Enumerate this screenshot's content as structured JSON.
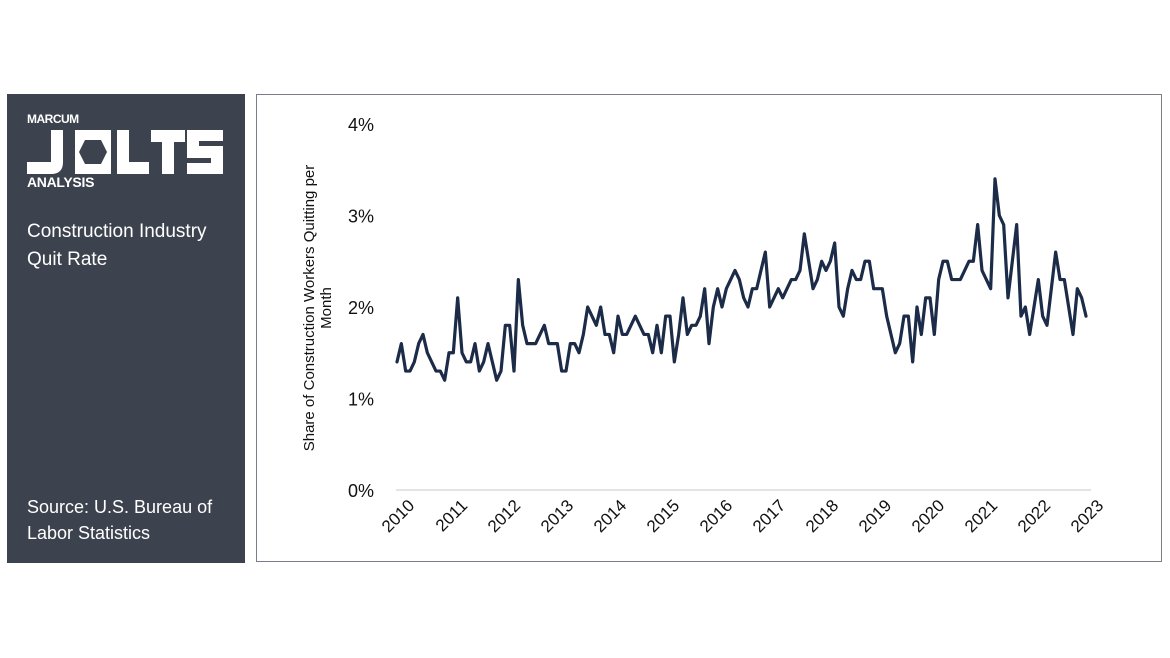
{
  "brand": {
    "small": "MARCUM",
    "big": "JOLTS",
    "sub": "ANALYSIS"
  },
  "panel": {
    "title": "Construction Industry Quit Rate",
    "source": "Source: U.S. Bureau of Labor Statistics"
  },
  "colors": {
    "panel_bg": "#3d434e",
    "line": "#1b2b48",
    "axis": "#c8c8c8"
  },
  "chart_data": {
    "type": "line",
    "title": "",
    "ylabel": "Share of Construction Workers Quitting per Month",
    "xlabel": "",
    "ylim": [
      0,
      4
    ],
    "y_ticks": [
      {
        "value": 0,
        "label": "0%"
      },
      {
        "value": 1,
        "label": "1%"
      },
      {
        "value": 2,
        "label": "2%"
      },
      {
        "value": 3,
        "label": "3%"
      },
      {
        "value": 4,
        "label": "4%"
      }
    ],
    "x_ticks": [
      "2010",
      "2011",
      "2012",
      "2013",
      "2014",
      "2015",
      "2016",
      "2017",
      "2018",
      "2019",
      "2020",
      "2021",
      "2022",
      "2023"
    ],
    "x_start_year": 2010,
    "grid": false,
    "series": [
      {
        "values": [
          1.4,
          1.6,
          1.3,
          1.3,
          1.4,
          1.6,
          1.7,
          1.5,
          1.4,
          1.3,
          1.3,
          1.2,
          1.5,
          1.5,
          2.1,
          1.5,
          1.4,
          1.4,
          1.6,
          1.3,
          1.4,
          1.6,
          1.4,
          1.2,
          1.3,
          1.8,
          1.8,
          1.3,
          2.3,
          1.8,
          1.6,
          1.6,
          1.6,
          1.7,
          1.8,
          1.6,
          1.6,
          1.6,
          1.3,
          1.3,
          1.6,
          1.6,
          1.5,
          1.7,
          2.0,
          1.9,
          1.8,
          2.0,
          1.7,
          1.7,
          1.5,
          1.9,
          1.7,
          1.7,
          1.8,
          1.9,
          1.8,
          1.7,
          1.7,
          1.5,
          1.8,
          1.5,
          1.9,
          1.9,
          1.4,
          1.7,
          2.1,
          1.7,
          1.8,
          1.8,
          1.9,
          2.2,
          1.6,
          2.0,
          2.2,
          2.0,
          2.2,
          2.3,
          2.4,
          2.3,
          2.1,
          2.0,
          2.2,
          2.2,
          2.4,
          2.6,
          2.0,
          2.1,
          2.2,
          2.1,
          2.2,
          2.3,
          2.3,
          2.4,
          2.8,
          2.5,
          2.2,
          2.3,
          2.5,
          2.4,
          2.5,
          2.7,
          2.0,
          1.9,
          2.2,
          2.4,
          2.3,
          2.3,
          2.5,
          2.5,
          2.2,
          2.2,
          2.2,
          1.9,
          1.7,
          1.5,
          1.6,
          1.9,
          1.9,
          1.4,
          2.0,
          1.7,
          2.1,
          2.1,
          1.7,
          2.3,
          2.5,
          2.5,
          2.3,
          2.3,
          2.3,
          2.4,
          2.5,
          2.5,
          2.9,
          2.4,
          2.3,
          2.2,
          3.4,
          3.0,
          2.9,
          2.1,
          2.5,
          2.9,
          1.9,
          2.0,
          1.7,
          2.0,
          2.3,
          1.9,
          1.8,
          2.2,
          2.6,
          2.3,
          2.3,
          2.0,
          1.7,
          2.2,
          2.1,
          1.9
        ]
      }
    ]
  }
}
